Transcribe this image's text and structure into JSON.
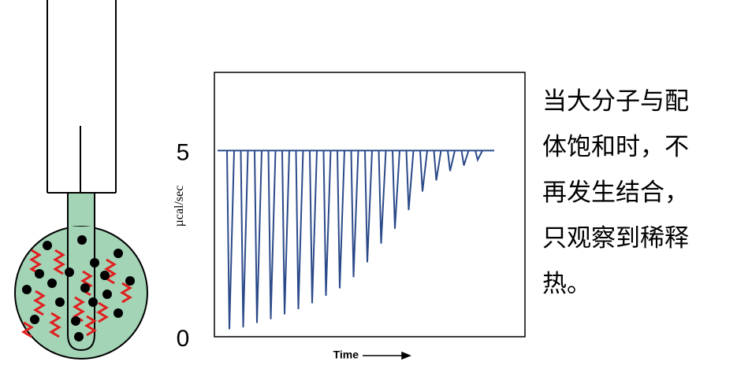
{
  "chart_data": {
    "type": "injection-trace",
    "ylabel": "µcal/sec",
    "xlabel": "Time",
    "ylim": [
      0,
      7.1
    ],
    "yticks": [
      0,
      5
    ],
    "baseline": 5,
    "color": "#2b4a8a",
    "values": [
      0.2,
      0.25,
      0.37,
      0.47,
      0.6,
      0.74,
      0.9,
      1.1,
      1.3,
      1.6,
      2.0,
      2.5,
      2.9,
      3.4,
      3.9,
      4.2,
      4.45,
      4.6,
      4.75
    ]
  },
  "caption": {
    "lines": [
      "当大分子与配",
      "体饱和时，不",
      "再发生结合，",
      "只观察到稀释",
      "热。"
    ]
  }
}
